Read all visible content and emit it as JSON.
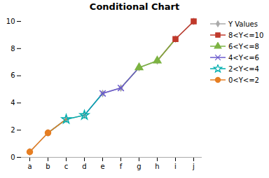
{
  "chart_data": {
    "type": "line",
    "title": "Conditional Chart",
    "categories": [
      "a",
      "b",
      "c",
      "d",
      "e",
      "f",
      "g",
      "h",
      "i",
      "j"
    ],
    "series": [
      {
        "name": "Y Values",
        "color": "#aaaaaa",
        "marker": "diamond",
        "values": [
          0.4,
          1.8,
          2.8,
          3.1,
          4.7,
          5.1,
          6.6,
          7.1,
          8.7,
          10.0
        ]
      },
      {
        "name": "8<Y<=10",
        "color": "#C0392B",
        "marker": "square",
        "values": [
          null,
          null,
          null,
          null,
          null,
          null,
          null,
          null,
          8.7,
          10.0
        ]
      },
      {
        "name": "6<Y<=8",
        "color": "#7CB342",
        "marker": "triangle",
        "values": [
          null,
          null,
          null,
          null,
          null,
          null,
          6.6,
          7.1,
          null,
          null
        ]
      },
      {
        "name": "4<Y<=6",
        "color": "#6A5ACD",
        "marker": "x",
        "values": [
          null,
          null,
          null,
          null,
          4.7,
          5.1,
          null,
          null,
          null,
          null
        ]
      },
      {
        "name": "2<Y<=4",
        "color": "#00AEAE",
        "marker": "star",
        "values": [
          null,
          null,
          2.8,
          3.1,
          null,
          null,
          null,
          null,
          null,
          null
        ]
      },
      {
        "name": "0<Y<=2",
        "color": "#E67E22",
        "marker": "circle",
        "values": [
          0.4,
          1.8,
          null,
          null,
          null,
          null,
          null,
          null,
          null,
          null
        ]
      }
    ],
    "ylim": [
      0,
      10
    ],
    "yticks": [
      0,
      2,
      4,
      6,
      8,
      10
    ],
    "grid": false,
    "legend": "right"
  }
}
